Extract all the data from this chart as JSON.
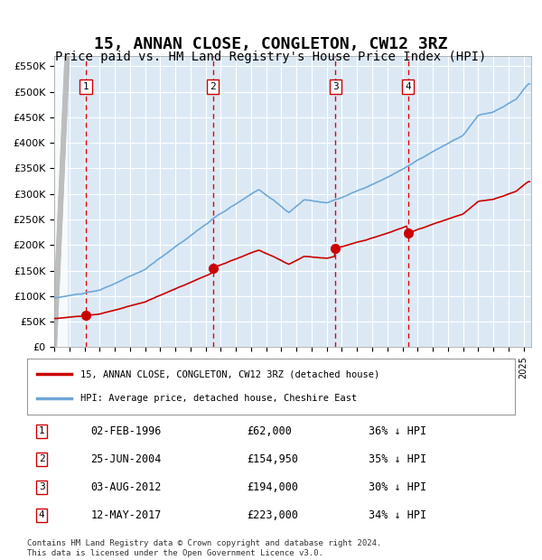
{
  "title": "15, ANNAN CLOSE, CONGLETON, CW12 3RZ",
  "subtitle": "Price paid vs. HM Land Registry's House Price Index (HPI)",
  "title_fontsize": 13,
  "subtitle_fontsize": 10,
  "background_color": "#ffffff",
  "plot_bg_color": "#dce9f5",
  "grid_color": "#ffffff",
  "hpi_color": "#6fa8d8",
  "price_color": "#cc0000",
  "sale_marker_color": "#cc0000",
  "dashed_line_color": "#dd0000",
  "ylabel_prefix": "£",
  "ylim": [
    0,
    570000
  ],
  "yticks": [
    0,
    50000,
    100000,
    150000,
    200000,
    250000,
    300000,
    350000,
    400000,
    450000,
    500000,
    550000
  ],
  "ytick_labels": [
    "£0",
    "£50K",
    "£100K",
    "£150K",
    "£200K",
    "£250K",
    "£300K",
    "£350K",
    "£400K",
    "£450K",
    "£500K",
    "£550K"
  ],
  "xlim_start": 1994.0,
  "xlim_end": 2025.5,
  "sales": [
    {
      "label": "1",
      "date_str": "02-FEB-1996",
      "year": 1996.08,
      "price": 62000
    },
    {
      "label": "2",
      "date_str": "25-JUN-2004",
      "year": 2004.48,
      "price": 154950
    },
    {
      "label": "3",
      "date_str": "03-AUG-2012",
      "year": 2012.58,
      "price": 194000
    },
    {
      "label": "4",
      "date_str": "12-MAY-2017",
      "year": 2017.36,
      "price": 223000
    }
  ],
  "legend_entries": [
    {
      "label": "15, ANNAN CLOSE, CONGLETON, CW12 3RZ (detached house)",
      "color": "#cc0000"
    },
    {
      "label": "HPI: Average price, detached house, Cheshire East",
      "color": "#6fa8d8"
    }
  ],
  "table_rows": [
    [
      "1",
      "02-FEB-1996",
      "£62,000",
      "36% ↓ HPI"
    ],
    [
      "2",
      "25-JUN-2004",
      "£154,950",
      "35% ↓ HPI"
    ],
    [
      "3",
      "03-AUG-2012",
      "£194,000",
      "30% ↓ HPI"
    ],
    [
      "4",
      "12-MAY-2017",
      "£223,000",
      "34% ↓ HPI"
    ]
  ],
  "footer": "Contains HM Land Registry data © Crown copyright and database right 2024.\nThis data is licensed under the Open Government Licence v3.0.",
  "hatch_color": "#cccccc"
}
